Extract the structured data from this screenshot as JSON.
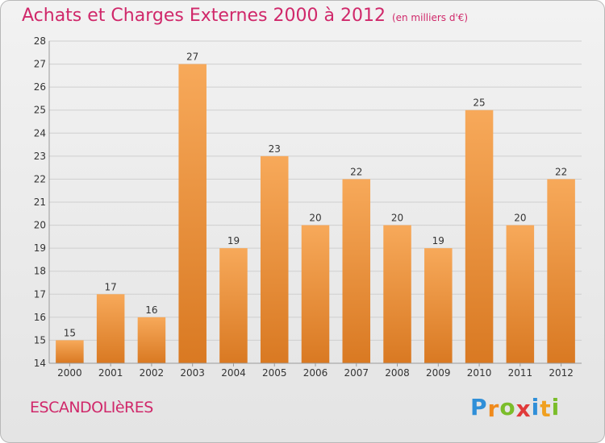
{
  "header": {
    "title": "Achats et Charges Externes 2000 à 2012",
    "subtitle": "(en milliers d'€)"
  },
  "footer": {
    "town": "ESCANDOLIèRES",
    "logo": {
      "letters": [
        "P",
        "r",
        "o",
        "x",
        "i",
        "t",
        "i"
      ],
      "colors": [
        "#2f8fd8",
        "#f08a1c",
        "#7bbd2a",
        "#e03a3a",
        "#2f8fd8",
        "#f0a020",
        "#7bbd2a"
      ]
    }
  },
  "colors": {
    "bar_light": "#f7a95a",
    "bar_dark": "#d97922",
    "grid": "#cfcfcf",
    "axis": "#9a9a9a",
    "text": "#333333"
  },
  "chart_data": {
    "type": "bar",
    "categories": [
      "2000",
      "2001",
      "2002",
      "2003",
      "2004",
      "2005",
      "2006",
      "2007",
      "2008",
      "2009",
      "2010",
      "2011",
      "2012"
    ],
    "values": [
      15,
      17,
      16,
      27,
      19,
      23,
      20,
      22,
      20,
      19,
      25,
      20,
      22
    ],
    "data_labels": [
      "15",
      "17",
      "16",
      "27",
      "19",
      "23",
      "20",
      "22",
      "20",
      "19",
      "25",
      "20",
      "22"
    ],
    "title": "Achats et Charges Externes 2000 à 2012",
    "subtitle": "(en milliers d'€)",
    "xlabel": "",
    "ylabel": "",
    "ylim": [
      14,
      28
    ],
    "yticks": [
      14,
      15,
      16,
      17,
      18,
      19,
      20,
      21,
      22,
      23,
      24,
      25,
      26,
      27,
      28
    ],
    "grid": true
  }
}
